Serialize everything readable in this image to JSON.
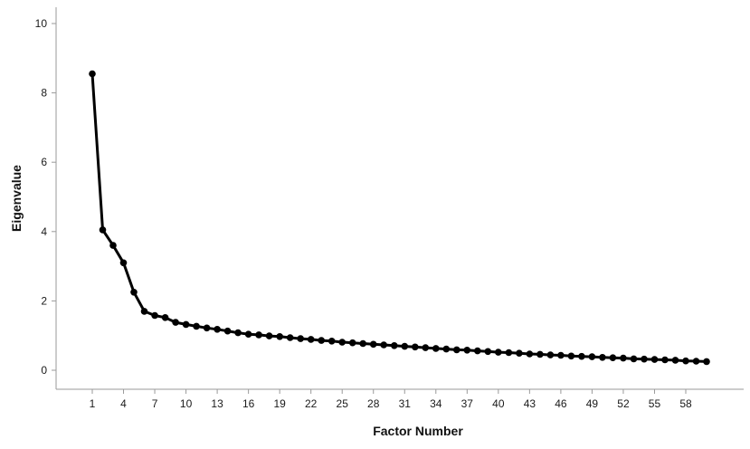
{
  "chart_data": {
    "type": "line",
    "title": "",
    "xlabel": "Factor Number",
    "ylabel": "Eigenvalue",
    "xlim": [
      1,
      60
    ],
    "ylim": [
      0,
      10
    ],
    "yticks": [
      0,
      2,
      4,
      6,
      8,
      10
    ],
    "xticks": [
      1,
      4,
      7,
      10,
      13,
      16,
      19,
      22,
      25,
      28,
      31,
      34,
      37,
      40,
      43,
      46,
      49,
      52,
      55,
      58
    ],
    "grid": false,
    "legend": "none",
    "line_color": "#000000",
    "series": [
      {
        "x": [
          1,
          2,
          3,
          4,
          5,
          6,
          7,
          8,
          9,
          10,
          11,
          12,
          13,
          14,
          15,
          16,
          17,
          18,
          19,
          20,
          21,
          22,
          23,
          24,
          25,
          26,
          27,
          28,
          29,
          30,
          31,
          32,
          33,
          34,
          35,
          36,
          37,
          38,
          39,
          40,
          41,
          42,
          43,
          44,
          45,
          46,
          47,
          48,
          49,
          50,
          51,
          52,
          53,
          54,
          55,
          56,
          57,
          58,
          59,
          60
        ],
        "values": [
          8.55,
          4.05,
          3.6,
          3.1,
          2.25,
          1.7,
          1.58,
          1.52,
          1.38,
          1.32,
          1.27,
          1.22,
          1.18,
          1.13,
          1.08,
          1.04,
          1.02,
          0.99,
          0.97,
          0.94,
          0.91,
          0.89,
          0.86,
          0.84,
          0.81,
          0.79,
          0.77,
          0.75,
          0.73,
          0.71,
          0.69,
          0.67,
          0.65,
          0.63,
          0.61,
          0.59,
          0.58,
          0.56,
          0.54,
          0.52,
          0.51,
          0.49,
          0.47,
          0.46,
          0.44,
          0.43,
          0.41,
          0.4,
          0.39,
          0.37,
          0.36,
          0.35,
          0.33,
          0.32,
          0.31,
          0.3,
          0.29,
          0.27,
          0.26,
          0.25
        ]
      }
    ]
  }
}
